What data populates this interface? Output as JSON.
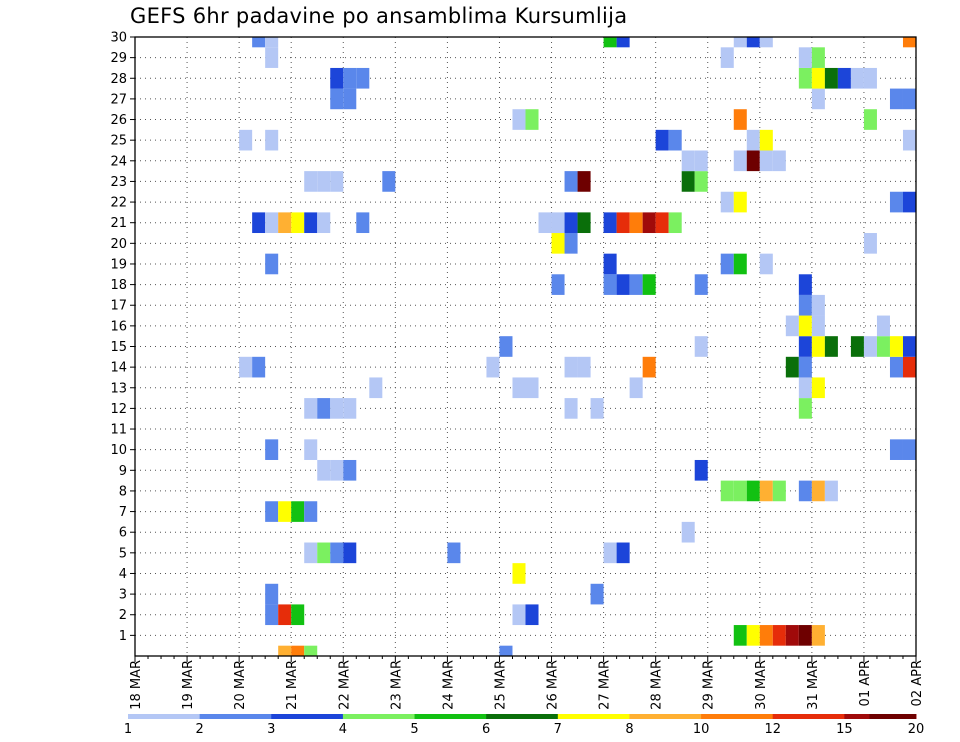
{
  "title": "GEFS 6hr padavine po ansamblima Kursumlija",
  "chart_data": {
    "type": "heatmap",
    "title": "GEFS 6hr padavine po ansamblima Kursumlija",
    "x_tick_labels": [
      "18 MAR",
      "19 MAR",
      "20 MAR",
      "21 MAR",
      "22 MAR",
      "23 MAR",
      "24 MAR",
      "25 MAR",
      "26 MAR",
      "27 MAR",
      "28 MAR",
      "29 MAR",
      "30 MAR",
      "31 MAR",
      "01 APR",
      "02 APR"
    ],
    "y_tick_labels": [
      "1",
      "2",
      "3",
      "4",
      "5",
      "6",
      "7",
      "8",
      "9",
      "10",
      "11",
      "12",
      "13",
      "14",
      "15",
      "16",
      "17",
      "18",
      "19",
      "20",
      "21",
      "22",
      "23",
      "24",
      "25",
      "26",
      "27",
      "28",
      "29",
      "30"
    ],
    "x_unit": "6h steps from 18 MAR 00Z (4 per day)",
    "x_range": [
      0,
      60
    ],
    "y_range": [
      0,
      30
    ],
    "grid": true,
    "legend_placement": "bottom",
    "legend": {
      "labels": [
        "1",
        "2",
        "3",
        "4",
        "5",
        "6",
        "7",
        "8",
        "10",
        "12",
        "15",
        "20"
      ],
      "colors": [
        "#b4c7f5",
        "#5a87eb",
        "#1c45d9",
        "#7bf060",
        "#12c112",
        "#0a6f0a",
        "#ffff00",
        "#ffb032",
        "#ff7d0a",
        "#e62d0a",
        "#a00a0a",
        "#6e0000"
      ]
    },
    "levels": {
      "L1": "#b4c7f5",
      "L2": "#5a87eb",
      "L3": "#1c45d9",
      "L4": "#7bf060",
      "L5": "#12c112",
      "L6": "#0a6f0a",
      "L7": "#ffff00",
      "L8": "#ffb032",
      "L10": "#ff7d0a",
      "L12": "#e62d0a",
      "L15": "#a00a0a",
      "L20": "#6e0000"
    },
    "cells": [
      [
        11.5,
        0,
        "L8"
      ],
      [
        12.5,
        0,
        "L10"
      ],
      [
        13.5,
        0,
        "L4"
      ],
      [
        28.5,
        0,
        "L2"
      ],
      [
        46.5,
        1,
        "L5"
      ],
      [
        47.5,
        1,
        "L7"
      ],
      [
        48.5,
        1,
        "L10"
      ],
      [
        49.5,
        1,
        "L12"
      ],
      [
        50.5,
        1,
        "L15"
      ],
      [
        51.5,
        1,
        "L20"
      ],
      [
        52.5,
        1,
        "L8"
      ],
      [
        10.5,
        2,
        "L2"
      ],
      [
        11.5,
        2,
        "L12"
      ],
      [
        12.5,
        2,
        "L5"
      ],
      [
        29.5,
        2,
        "L1"
      ],
      [
        30.5,
        2,
        "L3"
      ],
      [
        10.5,
        3,
        "L2"
      ],
      [
        35.5,
        3,
        "L2"
      ],
      [
        29.5,
        4,
        "L7"
      ],
      [
        13.5,
        5,
        "L1"
      ],
      [
        14.5,
        5,
        "L4"
      ],
      [
        15.5,
        5,
        "L2"
      ],
      [
        16.5,
        5,
        "L3"
      ],
      [
        24.5,
        5,
        "L2"
      ],
      [
        36.5,
        5,
        "L1"
      ],
      [
        37.5,
        5,
        "L3"
      ],
      [
        42.5,
        6,
        "L1"
      ],
      [
        10.5,
        7,
        "L2"
      ],
      [
        11.5,
        7,
        "L7"
      ],
      [
        12.5,
        7,
        "L5"
      ],
      [
        13.5,
        7,
        "L2"
      ],
      [
        45.5,
        8,
        "L4"
      ],
      [
        46.5,
        8,
        "L4"
      ],
      [
        47.5,
        8,
        "L5"
      ],
      [
        48.5,
        8,
        "L8"
      ],
      [
        49.5,
        8,
        "L4"
      ],
      [
        51.5,
        8,
        "L2"
      ],
      [
        52.5,
        8,
        "L8"
      ],
      [
        53.5,
        8,
        "L1"
      ],
      [
        14.5,
        9,
        "L1"
      ],
      [
        15.5,
        9,
        "L1"
      ],
      [
        16.5,
        9,
        "L2"
      ],
      [
        43.5,
        9,
        "L3"
      ],
      [
        10.5,
        10,
        "L2"
      ],
      [
        13.5,
        10,
        "L1"
      ],
      [
        58.5,
        10,
        "L2"
      ],
      [
        59.5,
        10,
        "L2"
      ],
      [
        13.5,
        12,
        "L1"
      ],
      [
        14.5,
        12,
        "L2"
      ],
      [
        15.5,
        12,
        "L1"
      ],
      [
        16.5,
        12,
        "L1"
      ],
      [
        33.5,
        12,
        "L1"
      ],
      [
        35.5,
        12,
        "L1"
      ],
      [
        51.5,
        12,
        "L4"
      ],
      [
        18.5,
        13,
        "L1"
      ],
      [
        29.5,
        13,
        "L1"
      ],
      [
        30.5,
        13,
        "L1"
      ],
      [
        38.5,
        13,
        "L1"
      ],
      [
        51.5,
        13,
        "L1"
      ],
      [
        52.5,
        13,
        "L7"
      ],
      [
        8.5,
        14,
        "L1"
      ],
      [
        9.5,
        14,
        "L2"
      ],
      [
        27.5,
        14,
        "L1"
      ],
      [
        33.5,
        14,
        "L1"
      ],
      [
        34.5,
        14,
        "L1"
      ],
      [
        39.5,
        14,
        "L10"
      ],
      [
        50.5,
        14,
        "L6"
      ],
      [
        51.5,
        14,
        "L2"
      ],
      [
        58.5,
        14,
        "L2"
      ],
      [
        59.5,
        14,
        "L12"
      ],
      [
        28.5,
        15,
        "L2"
      ],
      [
        43.5,
        15,
        "L1"
      ],
      [
        51.5,
        15,
        "L3"
      ],
      [
        52.5,
        15,
        "L7"
      ],
      [
        53.5,
        15,
        "L6"
      ],
      [
        55.5,
        15,
        "L6"
      ],
      [
        56.5,
        15,
        "L1"
      ],
      [
        57.5,
        15,
        "L4"
      ],
      [
        58.5,
        15,
        "L7"
      ],
      [
        59.5,
        15,
        "L3"
      ],
      [
        50.5,
        16,
        "L1"
      ],
      [
        51.5,
        16,
        "L7"
      ],
      [
        52.5,
        16,
        "L1"
      ],
      [
        57.5,
        16,
        "L1"
      ],
      [
        51.5,
        17,
        "L2"
      ],
      [
        52.5,
        17,
        "L1"
      ],
      [
        32.5,
        18,
        "L2"
      ],
      [
        36.5,
        18,
        "L2"
      ],
      [
        37.5,
        18,
        "L3"
      ],
      [
        38.5,
        18,
        "L2"
      ],
      [
        39.5,
        18,
        "L5"
      ],
      [
        43.5,
        18,
        "L2"
      ],
      [
        51.5,
        18,
        "L3"
      ],
      [
        10.5,
        19,
        "L2"
      ],
      [
        36.5,
        19,
        "L3"
      ],
      [
        45.5,
        19,
        "L2"
      ],
      [
        46.5,
        19,
        "L5"
      ],
      [
        48.5,
        19,
        "L1"
      ],
      [
        32.5,
        20,
        "L7"
      ],
      [
        33.5,
        20,
        "L2"
      ],
      [
        56.5,
        20,
        "L1"
      ],
      [
        9.5,
        21,
        "L3"
      ],
      [
        10.5,
        21,
        "L1"
      ],
      [
        11.5,
        21,
        "L8"
      ],
      [
        12.5,
        21,
        "L7"
      ],
      [
        13.5,
        21,
        "L3"
      ],
      [
        14.5,
        21,
        "L1"
      ],
      [
        17.5,
        21,
        "L2"
      ],
      [
        31.5,
        21,
        "L1"
      ],
      [
        32.5,
        21,
        "L1"
      ],
      [
        33.5,
        21,
        "L3"
      ],
      [
        34.5,
        21,
        "L6"
      ],
      [
        36.5,
        21,
        "L3"
      ],
      [
        37.5,
        21,
        "L12"
      ],
      [
        38.5,
        21,
        "L10"
      ],
      [
        39.5,
        21,
        "L15"
      ],
      [
        40.5,
        21,
        "L12"
      ],
      [
        41.5,
        21,
        "L4"
      ],
      [
        45.5,
        22,
        "L1"
      ],
      [
        46.5,
        22,
        "L7"
      ],
      [
        58.5,
        22,
        "L2"
      ],
      [
        59.5,
        22,
        "L3"
      ],
      [
        13.5,
        23,
        "L1"
      ],
      [
        14.5,
        23,
        "L1"
      ],
      [
        15.5,
        23,
        "L1"
      ],
      [
        19.5,
        23,
        "L2"
      ],
      [
        33.5,
        23,
        "L2"
      ],
      [
        34.5,
        23,
        "L20"
      ],
      [
        42.5,
        23,
        "L6"
      ],
      [
        43.5,
        23,
        "L4"
      ],
      [
        42.5,
        24,
        "L1"
      ],
      [
        43.5,
        24,
        "L1"
      ],
      [
        46.5,
        24,
        "L1"
      ],
      [
        47.5,
        24,
        "L20"
      ],
      [
        48.5,
        24,
        "L1"
      ],
      [
        49.5,
        24,
        "L1"
      ],
      [
        8.5,
        25,
        "L1"
      ],
      [
        10.5,
        25,
        "L1"
      ],
      [
        40.5,
        25,
        "L3"
      ],
      [
        41.5,
        25,
        "L2"
      ],
      [
        47.5,
        25,
        "L1"
      ],
      [
        48.5,
        25,
        "L7"
      ],
      [
        59.5,
        25,
        "L1"
      ],
      [
        29.5,
        26,
        "L1"
      ],
      [
        30.5,
        26,
        "L4"
      ],
      [
        46.5,
        26,
        "L10"
      ],
      [
        56.5,
        26,
        "L4"
      ],
      [
        15.5,
        27,
        "L2"
      ],
      [
        16.5,
        27,
        "L2"
      ],
      [
        52.5,
        27,
        "L1"
      ],
      [
        58.5,
        27,
        "L2"
      ],
      [
        59.5,
        27,
        "L2"
      ],
      [
        15.5,
        28,
        "L3"
      ],
      [
        16.5,
        28,
        "L2"
      ],
      [
        17.5,
        28,
        "L2"
      ],
      [
        51.5,
        28,
        "L4"
      ],
      [
        52.5,
        28,
        "L7"
      ],
      [
        53.5,
        28,
        "L6"
      ],
      [
        54.5,
        28,
        "L3"
      ],
      [
        55.5,
        28,
        "L1"
      ],
      [
        56.5,
        28,
        "L1"
      ],
      [
        10.5,
        29,
        "L1"
      ],
      [
        45.5,
        29,
        "L1"
      ],
      [
        51.5,
        29,
        "L1"
      ],
      [
        52.5,
        29,
        "L4"
      ],
      [
        9.5,
        30,
        "L2"
      ],
      [
        10.5,
        30,
        "L1"
      ],
      [
        36.5,
        30,
        "L5"
      ],
      [
        37.5,
        30,
        "L3"
      ],
      [
        46.5,
        30,
        "L1"
      ],
      [
        47.5,
        30,
        "L3"
      ],
      [
        48.5,
        30,
        "L1"
      ],
      [
        59.5,
        30,
        "L10"
      ]
    ]
  }
}
